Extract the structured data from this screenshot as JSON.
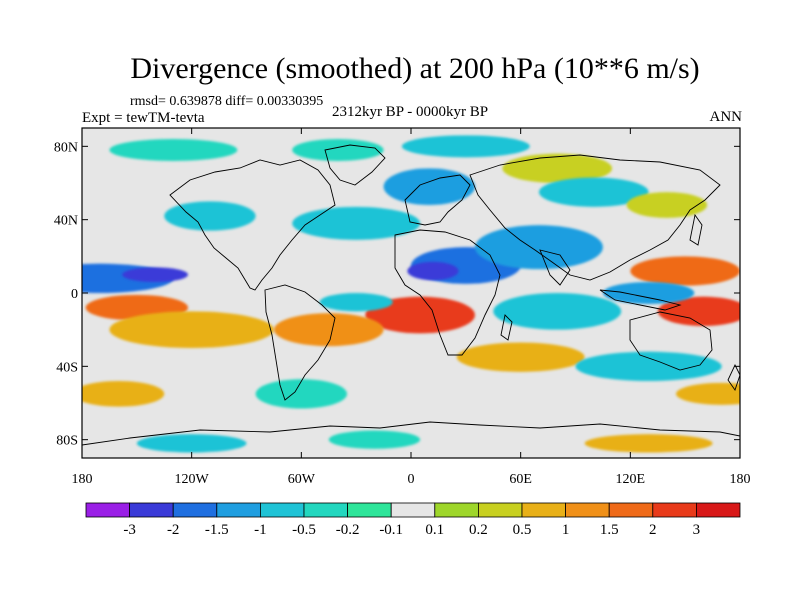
{
  "title": "Divergence (smoothed) at 200 hPa (10**6 m/s)",
  "stats_line": "rmsd= 0.639878  diff= 0.00330395",
  "experiment_label": "Expt = tewTM-tevta",
  "time_label": "2312kyr BP - 0000kyr BP",
  "season_label": "ANN",
  "lat_ticks": [
    "80N",
    "40N",
    "0",
    "40S",
    "80S"
  ],
  "lon_ticks": [
    "180",
    "120W",
    "60W",
    "0",
    "60E",
    "120E",
    "180"
  ],
  "colorbar": {
    "labels": [
      "-3",
      "-2",
      "-1.5",
      "-1",
      "-0.5",
      "-0.2",
      "-0.1",
      "0.1",
      "0.2",
      "0.5",
      "1",
      "1.5",
      "2",
      "3"
    ],
    "colors": [
      "#9a1fe6",
      "#3a3ad8",
      "#1f6fe0",
      "#1f9ee0",
      "#1fc3d6",
      "#23d7bf",
      "#2ee59a",
      "#e6e6e6",
      "#9ed62a",
      "#c8d020",
      "#e8b018",
      "#f09018",
      "#ef6a18",
      "#e83a1a",
      "#d81818"
    ]
  },
  "field": {
    "neutral": "#e6e6e6",
    "blobs": [
      {
        "lon": -170,
        "lat": 8,
        "rlon": 40,
        "rlat": 8,
        "level": 2
      },
      {
        "lon": -140,
        "lat": 10,
        "rlon": 18,
        "rlat": 4,
        "level": 1
      },
      {
        "lon": -150,
        "lat": -8,
        "rlon": 28,
        "rlat": 7,
        "level": 12
      },
      {
        "lon": -120,
        "lat": -20,
        "rlon": 45,
        "rlat": 10,
        "level": 10
      },
      {
        "lon": -110,
        "lat": 42,
        "rlon": 25,
        "rlat": 8,
        "level": 4
      },
      {
        "lon": -30,
        "lat": 38,
        "rlon": 35,
        "rlat": 9,
        "level": 4
      },
      {
        "lon": -130,
        "lat": 78,
        "rlon": 35,
        "rlat": 6,
        "level": 5
      },
      {
        "lon": -40,
        "lat": 78,
        "rlon": 25,
        "rlat": 6,
        "level": 5
      },
      {
        "lon": 30,
        "lat": 80,
        "rlon": 35,
        "rlat": 6,
        "level": 4
      },
      {
        "lon": 80,
        "lat": 68,
        "rlon": 30,
        "rlat": 8,
        "level": 9
      },
      {
        "lon": 10,
        "lat": 58,
        "rlon": 25,
        "rlat": 10,
        "level": 3
      },
      {
        "lon": 30,
        "lat": 15,
        "rlon": 30,
        "rlat": 10,
        "level": 2
      },
      {
        "lon": 12,
        "lat": 12,
        "rlon": 14,
        "rlat": 5,
        "level": 1
      },
      {
        "lon": 5,
        "lat": -12,
        "rlon": 30,
        "rlat": 10,
        "level": 13
      },
      {
        "lon": -45,
        "lat": -20,
        "rlon": 30,
        "rlat": 9,
        "level": 11
      },
      {
        "lon": 70,
        "lat": 25,
        "rlon": 35,
        "rlat": 12,
        "level": 3
      },
      {
        "lon": 100,
        "lat": 55,
        "rlon": 30,
        "rlat": 8,
        "level": 4
      },
      {
        "lon": 140,
        "lat": 48,
        "rlon": 22,
        "rlat": 7,
        "level": 9
      },
      {
        "lon": 150,
        "lat": 12,
        "rlon": 30,
        "rlat": 8,
        "level": 12
      },
      {
        "lon": 160,
        "lat": -10,
        "rlon": 25,
        "rlat": 8,
        "level": 13
      },
      {
        "lon": 130,
        "lat": 0,
        "rlon": 25,
        "rlat": 6,
        "level": 3
      },
      {
        "lon": 80,
        "lat": -10,
        "rlon": 35,
        "rlat": 10,
        "level": 4
      },
      {
        "lon": 60,
        "lat": -35,
        "rlon": 35,
        "rlat": 8,
        "level": 10
      },
      {
        "lon": -60,
        "lat": -55,
        "rlon": 25,
        "rlat": 8,
        "level": 5
      },
      {
        "lon": -30,
        "lat": -5,
        "rlon": 20,
        "rlat": 5,
        "level": 4
      },
      {
        "lon": 130,
        "lat": -40,
        "rlon": 40,
        "rlat": 8,
        "level": 4
      },
      {
        "lon": 170,
        "lat": -55,
        "rlon": 25,
        "rlat": 6,
        "level": 10
      },
      {
        "lon": -160,
        "lat": -55,
        "rlon": 25,
        "rlat": 7,
        "level": 10
      },
      {
        "lon": -120,
        "lat": -82,
        "rlon": 30,
        "rlat": 5,
        "level": 4
      },
      {
        "lon": -20,
        "lat": -80,
        "rlon": 25,
        "rlat": 5,
        "level": 5
      },
      {
        "lon": 130,
        "lat": -82,
        "rlon": 35,
        "rlat": 5,
        "level": 10
      }
    ]
  }
}
